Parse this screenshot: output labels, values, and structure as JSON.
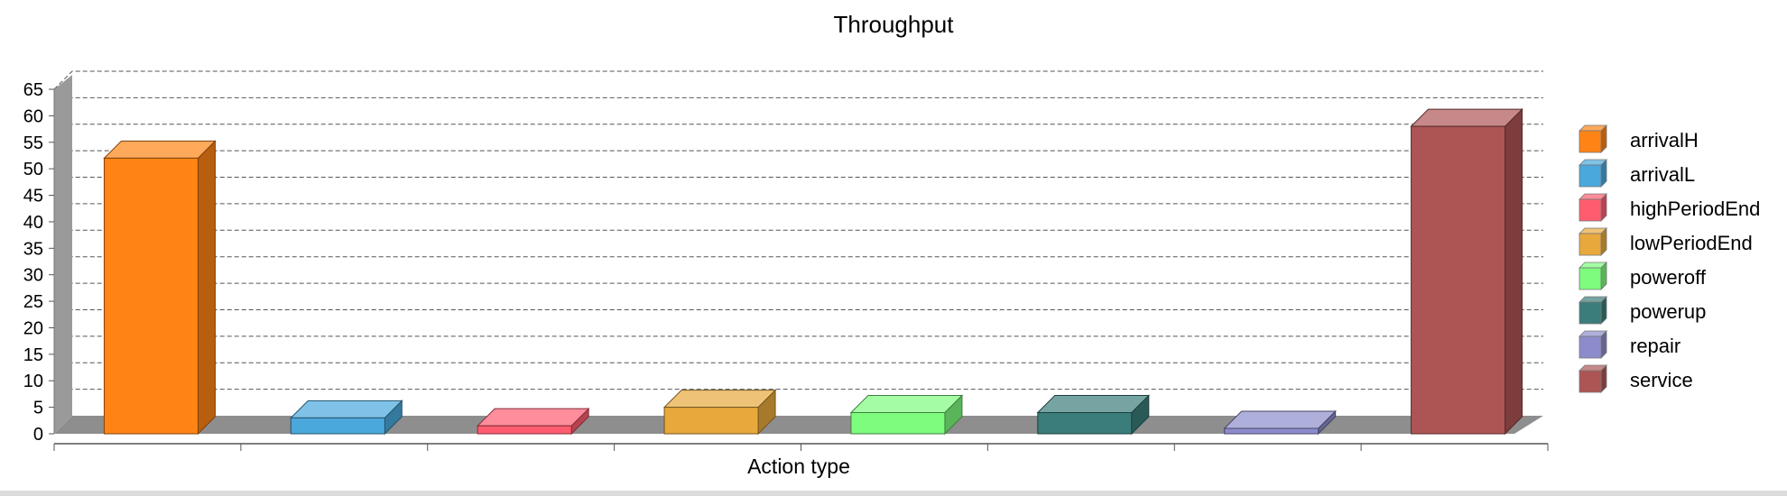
{
  "chart_data": {
    "type": "bar",
    "title": "Throughput",
    "xlabel": "Action type",
    "ylabel": "",
    "ylim": [
      0,
      65
    ],
    "yticks": [
      0,
      5,
      10,
      15,
      20,
      25,
      30,
      35,
      40,
      45,
      50,
      55,
      60,
      65
    ],
    "grid": true,
    "legend_position": "right",
    "categories": [
      "arrivalH",
      "arrivalL",
      "highPeriodEnd",
      "lowPeriodEnd",
      "poweroff",
      "powerup",
      "repair",
      "service"
    ],
    "values": [
      52,
      3,
      1.5,
      5,
      4,
      4,
      0.8,
      58
    ],
    "colors": [
      "#ff8415",
      "#4aa8dc",
      "#ff5c70",
      "#e8a93c",
      "#7dfc7d",
      "#3a7d7a",
      "#8c8ccc",
      "#ad5555"
    ]
  }
}
